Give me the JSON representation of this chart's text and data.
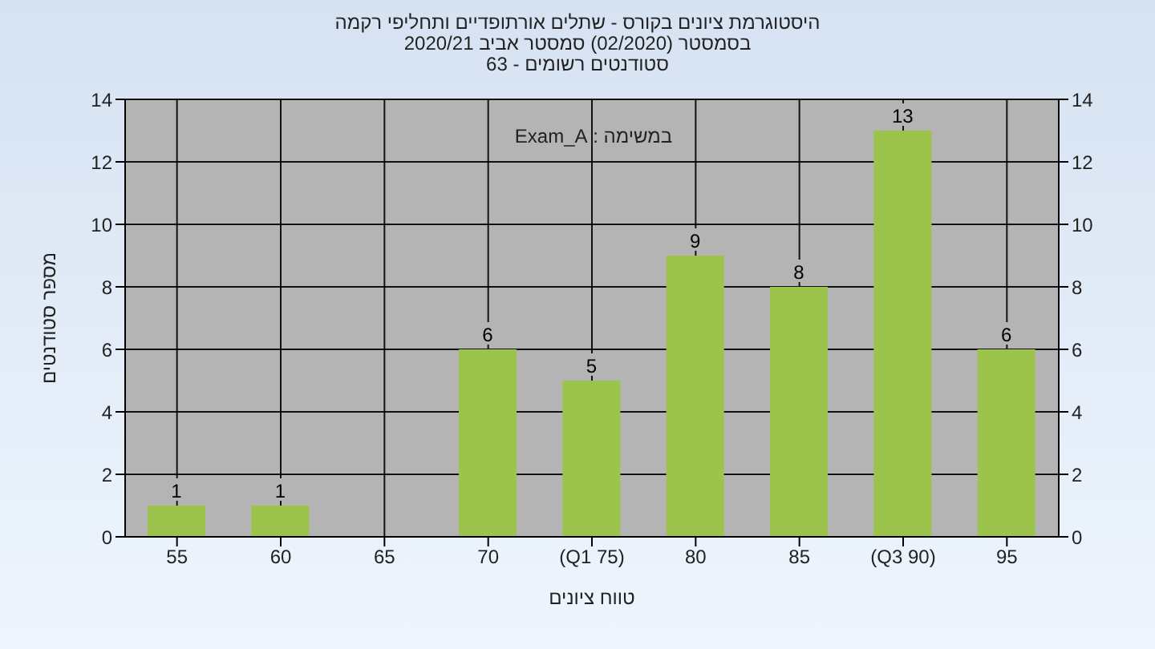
{
  "chart_data": {
    "type": "bar",
    "title": "היסטוגרמת ציונים בקורס - שתלים אורתופדיים ותחליפי רקמה",
    "subtitle": "בסמסטר  (02/2020)  סמסטר אביב 2020/21\nסטודנטים רשומים - 63",
    "xlabel": "טווח ציונים",
    "ylabel": "מספר סטודנטים",
    "annotations": [
      "במשימה : Exam_A"
    ],
    "categories": [
      "55",
      "60",
      "65",
      "70",
      "(Q1 75)",
      "80",
      "85",
      "(Q3 90)",
      "95"
    ],
    "values": [
      1,
      1,
      null,
      6,
      5,
      9,
      8,
      13,
      6
    ],
    "color": "#9cc44c",
    "ylim": [
      0,
      14
    ],
    "yticks": [
      0,
      2,
      4,
      6,
      8,
      10,
      12,
      14
    ],
    "y2lim": [
      0,
      14
    ],
    "y2ticks": [
      0,
      2,
      4,
      6,
      8,
      10,
      12,
      14
    ],
    "grid": true,
    "data_labels": true
  }
}
